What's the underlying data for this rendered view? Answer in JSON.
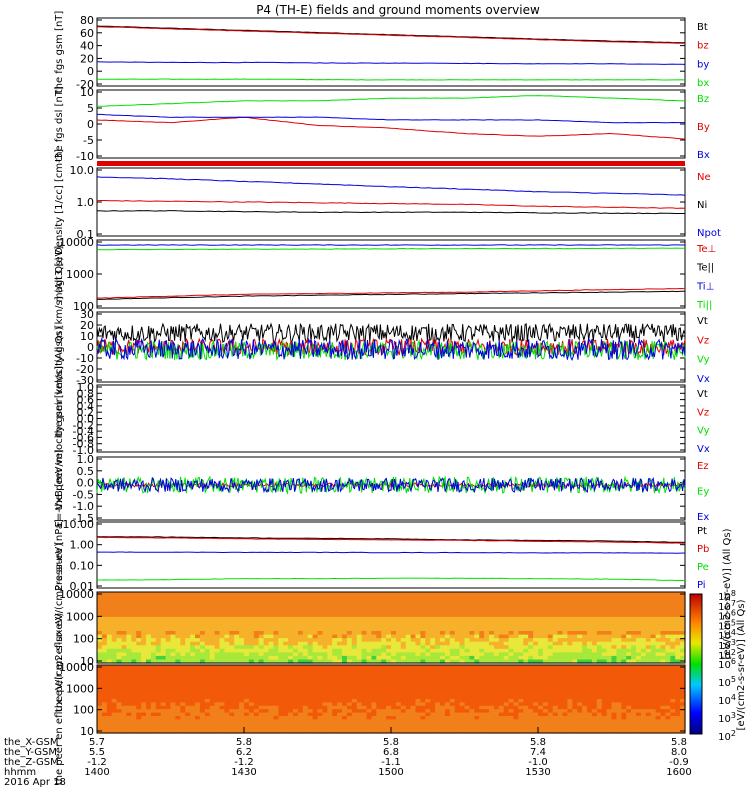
{
  "title": "P4 (TH-E) fields and ground moments overview",
  "colorbar": {
    "label": "[eV/(cm2-s-sr-eV)] (All Qs)",
    "overlap_label": "[eV/(cm2-s-sr-eV)] (All Qs)",
    "ticks1": [
      "10^8",
      "10^7",
      "10^6",
      "10^5",
      "10^4",
      "10^3",
      "10^2"
    ],
    "ticks2": [
      "10^6",
      "10^5",
      "10^4",
      "10^3",
      "10^2"
    ]
  },
  "xaxis": {
    "rows": [
      {
        "label": "the_X-GSM",
        "values": [
          "5.7",
          "5.8",
          "5.8",
          "5.8",
          "5.8"
        ]
      },
      {
        "label": "the_Y-GSM",
        "values": [
          "5.5",
          "6.2",
          "6.8",
          "7.4",
          "8.0"
        ]
      },
      {
        "label": "the_Z-GSM",
        "values": [
          "-1.2",
          "-1.2",
          "-1.1",
          "-1.0",
          "-0.9"
        ]
      },
      {
        "label": "hhmm",
        "values": [
          "1400",
          "1430",
          "1500",
          "1530",
          "1600"
        ]
      }
    ],
    "date": "2016 Apr 18"
  },
  "colors": {
    "black": "#000000",
    "red": "#e00000",
    "green": "#00e000",
    "blue": "#0000e0"
  },
  "chart_data": [
    {
      "type": "line",
      "ylabel": "the fgs gsm [nT]",
      "yticks": [
        "80",
        "60",
        "40",
        "20",
        "0",
        "-20"
      ],
      "ylim": [
        -25,
        85
      ],
      "series": [
        {
          "name": "Bt",
          "color": "black",
          "values": [
            72,
            68,
            64,
            60,
            56,
            52,
            48,
            45
          ]
        },
        {
          "name": "bz",
          "color": "red",
          "values": [
            71,
            67,
            63,
            59,
            55,
            51,
            47,
            44
          ]
        },
        {
          "name": "by",
          "color": "blue",
          "values": [
            14,
            13,
            13,
            12,
            12,
            11,
            11,
            10
          ]
        },
        {
          "name": "bx",
          "color": "green",
          "values": [
            -14,
            -14,
            -14,
            -15,
            -15,
            -15,
            -15,
            -15
          ]
        }
      ]
    },
    {
      "type": "line",
      "ylabel": "the fgs dsl [nT]",
      "yticks": [
        "10",
        "5",
        "0",
        "-5",
        "-10"
      ],
      "ylim": [
        -15,
        10
      ],
      "series": [
        {
          "name": "Bz",
          "color": "green",
          "values": [
            4,
            5,
            6,
            6,
            7,
            7,
            8,
            7,
            6
          ]
        },
        {
          "name": "By",
          "color": "red",
          "values": [
            -1,
            -2,
            0,
            -3,
            -4,
            -6,
            -7,
            -6,
            -8
          ]
        },
        {
          "name": "Bx",
          "color": "blue",
          "values": [
            1,
            0,
            0,
            0,
            -1,
            -1,
            -1,
            -2,
            -2
          ]
        }
      ]
    },
    {
      "type": "line",
      "ylabel": "Density [1/cc] [cm-3]",
      "yticks": [
        "10.0",
        "1.0",
        "0.1"
      ],
      "ylim": [
        0.1,
        10
      ],
      "log": true,
      "series": [
        {
          "name": "Ne",
          "color": "red",
          "values": [
            1.1,
            1.05,
            1.0,
            0.95,
            0.9,
            0.85,
            0.75,
            0.7,
            0.65
          ]
        },
        {
          "name": "Ni",
          "color": "black",
          "values": [
            0.55,
            0.55,
            0.52,
            0.5,
            0.5,
            0.5,
            0.48,
            0.47,
            0.46
          ]
        },
        {
          "name": "Npot",
          "color": "blue",
          "values": [
            5.5,
            4.8,
            4.0,
            3.4,
            2.8,
            2.4,
            2.0,
            1.8,
            1.6
          ]
        }
      ]
    },
    {
      "type": "line",
      "ylabel": "magt3 [eV]",
      "yticks": [
        "10000",
        "1000",
        "100"
      ],
      "ylim": [
        50,
        12000
      ],
      "log": true,
      "series": [
        {
          "name": "Te⊥",
          "color": "red",
          "values": [
            110,
            130,
            150,
            160,
            170,
            180,
            200,
            220,
            240
          ]
        },
        {
          "name": "Te||",
          "color": "black",
          "values": [
            100,
            115,
            130,
            140,
            150,
            160,
            170,
            180,
            190
          ]
        },
        {
          "name": "Ti⊥",
          "color": "blue",
          "values": [
            8000,
            8000,
            8000,
            8000,
            8000,
            8000,
            8000,
            8000,
            8000
          ]
        },
        {
          "name": "Ti||",
          "color": "green",
          "values": [
            5500,
            5600,
            5700,
            5800,
            5900,
            6000,
            6000,
            6100,
            6200
          ]
        }
      ]
    },
    {
      "type": "line",
      "ylabel": "the peir velocity gsm [km/s] (All Qs)",
      "yticks": [
        "30",
        "20",
        "10",
        "0",
        "-10",
        "-20",
        "-30"
      ],
      "ylim": [
        -30,
        30
      ],
      "noisy": true,
      "series": [
        {
          "name": "Vt",
          "color": "black",
          "values": [
            12,
            12,
            12,
            12,
            12
          ],
          "noise": 8
        },
        {
          "name": "Vz",
          "color": "red",
          "values": [
            0,
            0,
            0,
            0,
            0
          ],
          "noise": 7
        },
        {
          "name": "Vy",
          "color": "green",
          "values": [
            -3,
            -3,
            -3,
            -3,
            -3
          ],
          "noise": 8
        },
        {
          "name": "Vx",
          "color": "blue",
          "values": [
            -2,
            -2,
            -2,
            -2,
            -2
          ],
          "noise": 9
        }
      ]
    },
    {
      "type": "line",
      "ylabel": "the peer velocity gsm [km/s] (All Qs)",
      "yticks": [
        "1.0",
        "0.8",
        "0.6",
        "0.4",
        "0.2",
        "0.0",
        "-0.2",
        "-0.4",
        "-0.6",
        "-0.8",
        "-1.0"
      ],
      "ylim": [
        -1,
        1
      ],
      "series": [
        {
          "name": "Vt",
          "color": "black",
          "values": []
        },
        {
          "name": "Vz",
          "color": "red",
          "values": []
        },
        {
          "name": "Vy",
          "color": "green",
          "values": []
        },
        {
          "name": "Vx",
          "color": "blue",
          "values": []
        }
      ]
    },
    {
      "type": "line",
      "ylabel": "E=-VxB [mV/m]",
      "yticks": [
        "1.0",
        "0.5",
        "0.0",
        "-0.5",
        "-1.0",
        "-1.5"
      ],
      "ylim": [
        -1.5,
        1.2
      ],
      "noisy": true,
      "series": [
        {
          "name": "Ez",
          "color": "red",
          "values": [
            0,
            0,
            0,
            0,
            0
          ],
          "noise": 0.08
        },
        {
          "name": "Ey",
          "color": "green",
          "values": [
            0,
            0,
            0,
            0,
            0
          ],
          "noise": 0.35
        },
        {
          "name": "Ex",
          "color": "blue",
          "values": [
            0,
            0,
            0,
            0,
            0
          ],
          "noise": 0.3
        }
      ]
    },
    {
      "type": "line",
      "ylabel": "Pressure [nPa]",
      "yticks": [
        "10.00",
        "1.00",
        "0.10",
        "0.01"
      ],
      "ylim": [
        0.007,
        12
      ],
      "log": true,
      "series": [
        {
          "name": "Pt",
          "color": "black",
          "values": [
            2.3,
            2.2,
            2.0,
            1.9,
            1.8,
            1.6,
            1.5,
            1.4,
            1.2
          ]
        },
        {
          "name": "Pb",
          "color": "red",
          "values": [
            2.1,
            2.0,
            1.8,
            1.7,
            1.6,
            1.5,
            1.35,
            1.25,
            1.1
          ]
        },
        {
          "name": "Pe",
          "color": "green",
          "values": [
            0.017,
            0.018,
            0.02,
            0.02,
            0.021,
            0.021,
            0.02,
            0.019,
            0.016
          ]
        },
        {
          "name": "Pi",
          "color": "blue",
          "values": [
            0.4,
            0.4,
            0.39,
            0.39,
            0.38,
            0.38,
            0.37,
            0.37,
            0.36
          ]
        }
      ]
    },
    {
      "type": "heatmap",
      "ylabel": "the peir en eflux eV/(cm2-s-sr-eV)",
      "yticks": [
        "10000",
        "1000",
        "100",
        "10"
      ],
      "ylim": [
        6,
        20000
      ],
      "log": true
    },
    {
      "type": "heatmap",
      "ylabel": "the peer en eflux eV/(cm2-s-sr-eV)",
      "yticks": [
        "10000",
        "1000",
        "100",
        "10"
      ],
      "ylim": [
        6,
        20000
      ],
      "log": true
    }
  ]
}
